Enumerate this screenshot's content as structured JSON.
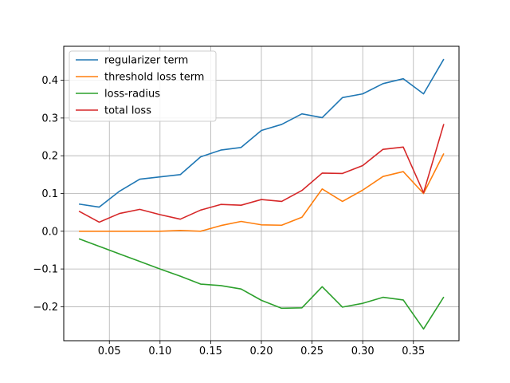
{
  "chart_data": {
    "type": "line",
    "title": "",
    "xlabel": "",
    "ylabel": "",
    "xlim": [
      0.005,
      0.395
    ],
    "ylim": [
      -0.29,
      0.49
    ],
    "grid": true,
    "legend_position": "upper-left",
    "x": [
      0.02,
      0.04,
      0.06,
      0.08,
      0.1,
      0.12,
      0.14,
      0.16,
      0.18,
      0.2,
      0.22,
      0.24,
      0.26,
      0.28,
      0.3,
      0.32,
      0.34,
      0.36,
      0.38
    ],
    "x_ticks": [
      0.05,
      0.1,
      0.15,
      0.2,
      0.25,
      0.3,
      0.35
    ],
    "x_tick_labels": [
      "0.05",
      "0.10",
      "0.15",
      "0.20",
      "0.25",
      "0.30",
      "0.35"
    ],
    "y_ticks": [
      -0.2,
      -0.1,
      0.0,
      0.1,
      0.2,
      0.3,
      0.4
    ],
    "y_tick_labels": [
      "−0.2",
      "−0.1",
      "0.0",
      "0.1",
      "0.2",
      "0.3",
      "0.4"
    ],
    "series": [
      {
        "name": "regularizer term",
        "color": "#1f77b4",
        "values": [
          0.072,
          0.064,
          0.106,
          0.138,
          0.144,
          0.15,
          0.197,
          0.215,
          0.222,
          0.267,
          0.283,
          0.311,
          0.301,
          0.354,
          0.364,
          0.391,
          0.404,
          0.364,
          0.456
        ]
      },
      {
        "name": "threshold loss term",
        "color": "#ff7f0e",
        "values": [
          0.0,
          0.0,
          0.0,
          0.0,
          0.0,
          0.002,
          0.0,
          0.015,
          0.026,
          0.017,
          0.016,
          0.037,
          0.112,
          0.079,
          0.109,
          0.145,
          0.158,
          0.1,
          0.206
        ]
      },
      {
        "name": "loss-radius",
        "color": "#2ca02c",
        "values": [
          -0.02,
          -0.04,
          -0.06,
          -0.08,
          -0.1,
          -0.119,
          -0.14,
          -0.144,
          -0.153,
          -0.183,
          -0.204,
          -0.203,
          -0.147,
          -0.201,
          -0.191,
          -0.175,
          -0.182,
          -0.259,
          -0.174
        ]
      },
      {
        "name": "total loss",
        "color": "#d62728",
        "values": [
          0.053,
          0.024,
          0.047,
          0.058,
          0.044,
          0.032,
          0.056,
          0.071,
          0.069,
          0.084,
          0.079,
          0.108,
          0.154,
          0.153,
          0.174,
          0.217,
          0.223,
          0.102,
          0.284
        ]
      }
    ]
  }
}
